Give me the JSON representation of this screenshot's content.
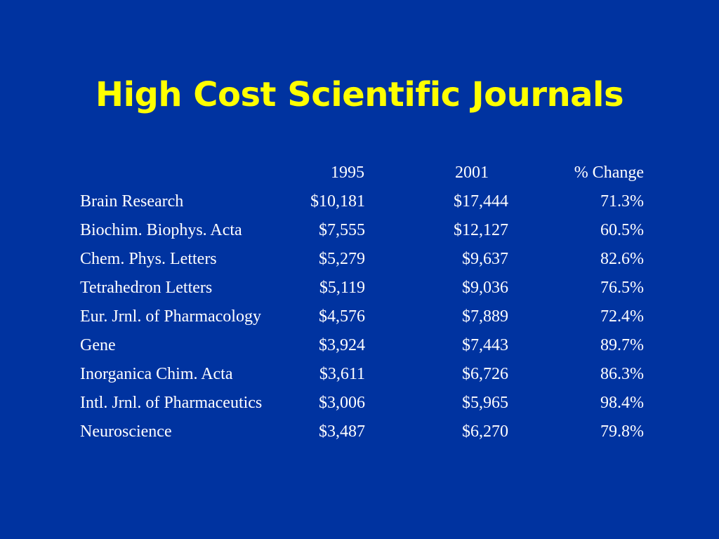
{
  "slide": {
    "title": "High Cost Scientific Journals",
    "colors": {
      "background": "#0033a0",
      "title": "#ffff00",
      "text": "#ffffff"
    }
  },
  "table": {
    "headers": [
      "",
      "1995",
      "2001",
      "% Change"
    ],
    "rows": [
      {
        "name": "Brain Research",
        "y1995": "$10,181",
        "y2001": "$17,444",
        "change": "71.3%"
      },
      {
        "name": "Biochim. Biophys. Acta",
        "y1995": "$7,555",
        "y2001": "$12,127",
        "change": "60.5%"
      },
      {
        "name": "Chem. Phys. Letters",
        "y1995": "$5,279",
        "y2001": "$9,637",
        "change": "82.6%"
      },
      {
        "name": "Tetrahedron Letters",
        "y1995": "$5,119",
        "y2001": "$9,036",
        "change": "76.5%"
      },
      {
        "name": "Eur. Jrnl. of Pharmacology",
        "y1995": "$4,576",
        "y2001": "$7,889",
        "change": "72.4%"
      },
      {
        "name": "Gene",
        "y1995": "$3,924",
        "y2001": "$7,443",
        "change": "89.7%"
      },
      {
        "name": "Inorganica Chim. Acta",
        "y1995": "$3,611",
        "y2001": "$6,726",
        "change": "86.3%"
      },
      {
        "name": "Intl. Jrnl. of Pharmaceutics",
        "y1995": "$3,006",
        "y2001": "$5,965",
        "change": "98.4%"
      },
      {
        "name": "Neuroscience",
        "y1995": "$3,487",
        "y2001": "$6,270",
        "change": "79.8%"
      }
    ]
  }
}
